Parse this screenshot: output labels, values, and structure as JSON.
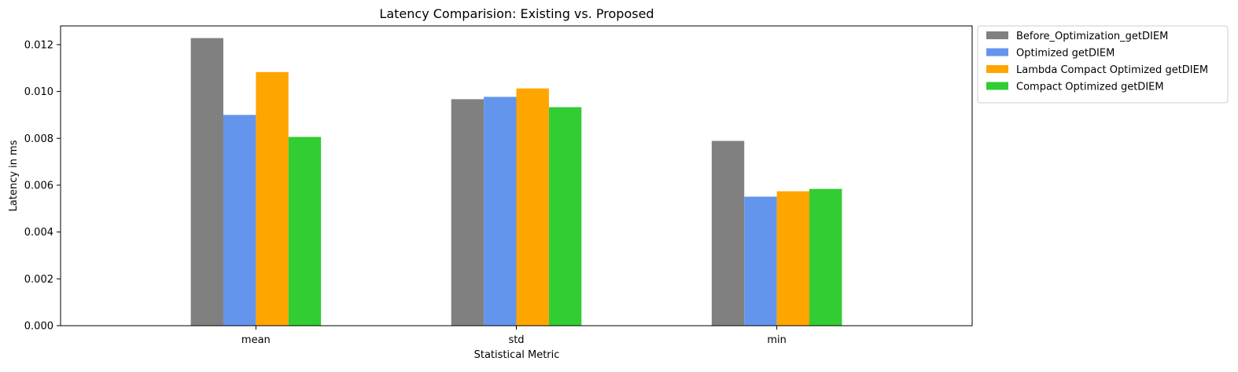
{
  "chart_data": {
    "type": "bar",
    "title": "Latency Comparision: Existing vs. Proposed",
    "xlabel": "Statistical Metric",
    "ylabel": "Latency in ms",
    "categories": [
      "mean",
      "std",
      "min"
    ],
    "ylim": [
      0,
      0.0128
    ],
    "yticks": [
      "0.000",
      "0.002",
      "0.004",
      "0.006",
      "0.008",
      "0.010",
      "0.012"
    ],
    "ytick_values": [
      0,
      0.002,
      0.004,
      0.006,
      0.008,
      0.01,
      0.012
    ],
    "grid": false,
    "legend_position": "outside-top-right",
    "series": [
      {
        "name": "Before_Optimization_getDIEM",
        "color": "#808080",
        "values": [
          0.01228,
          0.00967,
          0.00789
        ]
      },
      {
        "name": "Optimized getDIEM",
        "color": "#6495ED",
        "values": [
          0.009,
          0.00977,
          0.00551
        ]
      },
      {
        "name": "Lambda Compact Optimized getDIEM",
        "color": "#FFA500",
        "values": [
          0.01083,
          0.01013,
          0.00574
        ]
      },
      {
        "name": "Compact Optimized getDIEM",
        "color": "#32CD32",
        "values": [
          0.00806,
          0.00933,
          0.00584
        ]
      }
    ]
  }
}
